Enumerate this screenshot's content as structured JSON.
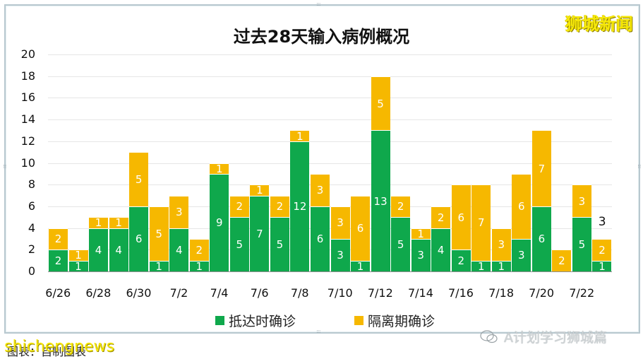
{
  "header": {
    "title": "过去28天输入病例概况",
    "brand_watermark": "狮城新闻"
  },
  "footer": {
    "caption": "图表：自制图表",
    "site_watermark": "shichengnews",
    "wechat_watermark": "A计划学习狮城篇"
  },
  "legend": {
    "items": [
      {
        "label": "抵达时确诊",
        "color": "#0fa84c"
      },
      {
        "label": "隔离期确诊",
        "color": "#f6b800"
      }
    ]
  },
  "chart_data": {
    "type": "bar",
    "stacked": true,
    "title": "过去28天输入病例概况",
    "xlabel": "",
    "ylabel": "",
    "ylim": [
      0,
      20
    ],
    "yticks": [
      0,
      2,
      4,
      6,
      8,
      10,
      12,
      14,
      16,
      18,
      20
    ],
    "grid": true,
    "legend_position": "bottom",
    "categories": [
      "6/26",
      "6/27",
      "6/28",
      "6/29",
      "6/30",
      "7/1",
      "7/2",
      "7/3",
      "7/4",
      "7/5",
      "7/6",
      "7/7",
      "7/8",
      "7/9",
      "7/10",
      "7/11",
      "7/12",
      "7/13",
      "7/14",
      "7/15",
      "7/16",
      "7/17",
      "7/18",
      "7/19",
      "7/20",
      "7/21",
      "7/22",
      "7/23"
    ],
    "xtick_labels": [
      "6/26",
      "6/28",
      "6/30",
      "7/2",
      "7/4",
      "7/6",
      "7/8",
      "7/10",
      "7/12",
      "7/14",
      "7/16",
      "7/18",
      "7/20",
      "7/22"
    ],
    "series": [
      {
        "name": "抵达时确诊",
        "color": "#0fa84c",
        "values": [
          2,
          1,
          4,
          4,
          6,
          1,
          4,
          1,
          9,
          5,
          7,
          5,
          12,
          6,
          3,
          1,
          13,
          5,
          3,
          4,
          2,
          1,
          1,
          3,
          6,
          0,
          5,
          1
        ]
      },
      {
        "name": "隔离期确诊",
        "color": "#f6b800",
        "values": [
          2,
          1,
          1,
          1,
          5,
          5,
          3,
          2,
          1,
          2,
          1,
          2,
          1,
          3,
          3,
          6,
          5,
          2,
          1,
          2,
          6,
          7,
          3,
          6,
          7,
          2,
          3,
          2
        ]
      }
    ],
    "annotations": [
      {
        "category": "7/23",
        "text": "3"
      }
    ]
  }
}
